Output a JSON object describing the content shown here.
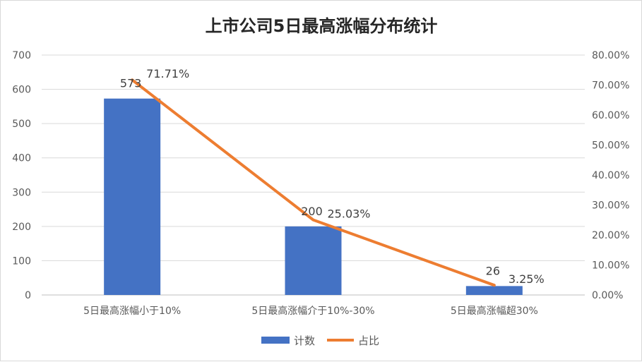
{
  "chart_data": {
    "type": "bar",
    "title": "上市公司5日最高涨幅分布统计",
    "categories": [
      "5日最高涨幅小于10%",
      "5日最高涨幅介于10%-30%",
      "5日最高涨幅超30%"
    ],
    "series": [
      {
        "name": "计数",
        "type": "bar",
        "axis": "left",
        "values": [
          573,
          200,
          26
        ],
        "labels": [
          "573",
          "200",
          "26"
        ],
        "color": "#4472C4"
      },
      {
        "name": "占比",
        "type": "line",
        "axis": "right",
        "values": [
          71.71,
          25.03,
          3.25
        ],
        "labels": [
          "71.71%",
          "25.03%",
          "3.25%"
        ],
        "color": "#ED7D31"
      }
    ],
    "y_left": {
      "min": 0,
      "max": 700,
      "ticks": [
        "0",
        "100",
        "200",
        "300",
        "400",
        "500",
        "600",
        "700"
      ]
    },
    "y_right": {
      "min": 0,
      "max": 80,
      "ticks": [
        "0.00%",
        "10.00%",
        "20.00%",
        "30.00%",
        "40.00%",
        "50.00%",
        "60.00%",
        "70.00%",
        "80.00%"
      ]
    },
    "grid": true,
    "legend_position": "bottom"
  }
}
